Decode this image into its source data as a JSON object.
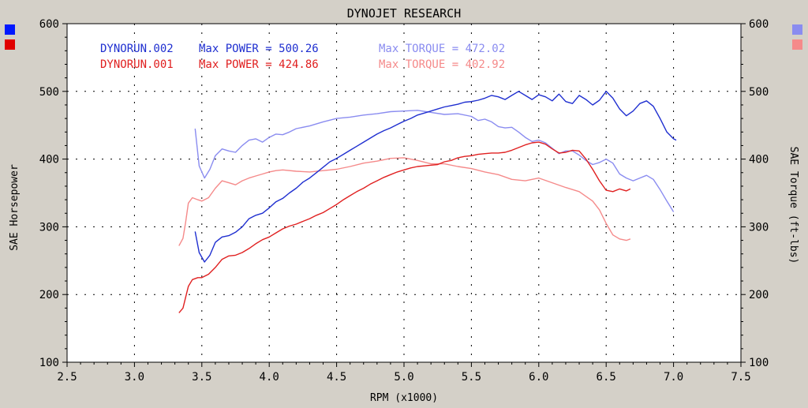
{
  "chart_data": {
    "type": "line",
    "title": "DYNOJET RESEARCH",
    "xlabel": "RPM (x1000)",
    "ylabel_left": "SAE Horsepower",
    "ylabel_right": "SAE Torque (ft-lbs)",
    "xlim": [
      2.5,
      7.5
    ],
    "ylim": [
      100,
      600
    ],
    "x_ticks": [
      "2.5",
      "3.0",
      "3.5",
      "4.0",
      "4.5",
      "5.0",
      "5.5",
      "6.0",
      "6.5",
      "7.0",
      "7.5"
    ],
    "y_ticks": [
      "100",
      "200",
      "300",
      "400",
      "500",
      "600"
    ],
    "grid": true,
    "legend_lines": [
      {
        "run": "DYNORUN.002",
        "power_label": "Max POWER = 500.26",
        "torque_label": "Max TORQUE = 472.02",
        "power_color": "#1f2fd0",
        "torque_color": "#8a8cf0"
      },
      {
        "run": "DYNORUN.001",
        "power_label": "Max POWER = 424.86",
        "torque_label": "Max TORQUE = 402.92",
        "power_color": "#e02020",
        "torque_color": "#f58a8a"
      }
    ],
    "series": [
      {
        "name": "DYNORUN.002 Max POWER",
        "color": "#1f2fd0",
        "points": [
          [
            3.45,
            293
          ],
          [
            3.48,
            262
          ],
          [
            3.52,
            248
          ],
          [
            3.56,
            258
          ],
          [
            3.6,
            277
          ],
          [
            3.65,
            285
          ],
          [
            3.7,
            287
          ],
          [
            3.75,
            292
          ],
          [
            3.8,
            300
          ],
          [
            3.85,
            312
          ],
          [
            3.9,
            317
          ],
          [
            3.95,
            320
          ],
          [
            4.0,
            328
          ],
          [
            4.05,
            337
          ],
          [
            4.1,
            342
          ],
          [
            4.15,
            350
          ],
          [
            4.2,
            357
          ],
          [
            4.25,
            366
          ],
          [
            4.3,
            372
          ],
          [
            4.35,
            380
          ],
          [
            4.4,
            388
          ],
          [
            4.45,
            396
          ],
          [
            4.5,
            401
          ],
          [
            4.55,
            407
          ],
          [
            4.6,
            413
          ],
          [
            4.65,
            419
          ],
          [
            4.7,
            425
          ],
          [
            4.75,
            431
          ],
          [
            4.8,
            437
          ],
          [
            4.85,
            442
          ],
          [
            4.9,
            446
          ],
          [
            4.95,
            451
          ],
          [
            5.0,
            456
          ],
          [
            5.05,
            460
          ],
          [
            5.1,
            465
          ],
          [
            5.15,
            468
          ],
          [
            5.2,
            471
          ],
          [
            5.25,
            474
          ],
          [
            5.3,
            477
          ],
          [
            5.35,
            479
          ],
          [
            5.4,
            481
          ],
          [
            5.45,
            484
          ],
          [
            5.5,
            485
          ],
          [
            5.55,
            487
          ],
          [
            5.6,
            490
          ],
          [
            5.65,
            494
          ],
          [
            5.7,
            492
          ],
          [
            5.75,
            488
          ],
          [
            5.8,
            494
          ],
          [
            5.85,
            500
          ],
          [
            5.9,
            494
          ],
          [
            5.95,
            488
          ],
          [
            6.0,
            495
          ],
          [
            6.05,
            492
          ],
          [
            6.1,
            486
          ],
          [
            6.15,
            496
          ],
          [
            6.2,
            485
          ],
          [
            6.25,
            482
          ],
          [
            6.3,
            494
          ],
          [
            6.35,
            488
          ],
          [
            6.4,
            480
          ],
          [
            6.45,
            487
          ],
          [
            6.5,
            500
          ],
          [
            6.55,
            490
          ],
          [
            6.6,
            474
          ],
          [
            6.65,
            464
          ],
          [
            6.7,
            471
          ],
          [
            6.75,
            482
          ],
          [
            6.8,
            486
          ],
          [
            6.85,
            478
          ],
          [
            6.9,
            460
          ],
          [
            6.95,
            440
          ],
          [
            7.0,
            430
          ],
          [
            7.02,
            428
          ]
        ]
      },
      {
        "name": "DYNORUN.002 Max TORQUE",
        "color": "#8a8cf0",
        "points": [
          [
            3.45,
            445
          ],
          [
            3.48,
            390
          ],
          [
            3.52,
            372
          ],
          [
            3.56,
            385
          ],
          [
            3.6,
            405
          ],
          [
            3.65,
            415
          ],
          [
            3.7,
            412
          ],
          [
            3.75,
            410
          ],
          [
            3.8,
            420
          ],
          [
            3.85,
            428
          ],
          [
            3.9,
            430
          ],
          [
            3.95,
            425
          ],
          [
            4.0,
            432
          ],
          [
            4.05,
            437
          ],
          [
            4.1,
            436
          ],
          [
            4.15,
            440
          ],
          [
            4.2,
            445
          ],
          [
            4.3,
            449
          ],
          [
            4.4,
            455
          ],
          [
            4.5,
            460
          ],
          [
            4.6,
            462
          ],
          [
            4.7,
            465
          ],
          [
            4.8,
            467
          ],
          [
            4.9,
            470
          ],
          [
            5.0,
            471
          ],
          [
            5.1,
            472
          ],
          [
            5.2,
            469
          ],
          [
            5.3,
            466
          ],
          [
            5.4,
            467
          ],
          [
            5.5,
            463
          ],
          [
            5.55,
            457
          ],
          [
            5.6,
            459
          ],
          [
            5.65,
            455
          ],
          [
            5.7,
            448
          ],
          [
            5.75,
            446
          ],
          [
            5.8,
            447
          ],
          [
            5.85,
            440
          ],
          [
            5.9,
            432
          ],
          [
            5.95,
            426
          ],
          [
            6.0,
            428
          ],
          [
            6.05,
            424
          ],
          [
            6.1,
            416
          ],
          [
            6.15,
            408
          ],
          [
            6.2,
            412
          ],
          [
            6.25,
            412
          ],
          [
            6.3,
            406
          ],
          [
            6.35,
            398
          ],
          [
            6.4,
            392
          ],
          [
            6.45,
            395
          ],
          [
            6.5,
            400
          ],
          [
            6.55,
            394
          ],
          [
            6.6,
            378
          ],
          [
            6.65,
            372
          ],
          [
            6.7,
            368
          ],
          [
            6.75,
            372
          ],
          [
            6.8,
            376
          ],
          [
            6.85,
            370
          ],
          [
            6.9,
            355
          ],
          [
            6.95,
            338
          ],
          [
            7.0,
            322
          ]
        ]
      },
      {
        "name": "DYNORUN.001 Max POWER",
        "color": "#e02020",
        "points": [
          [
            3.33,
            173
          ],
          [
            3.36,
            180
          ],
          [
            3.38,
            196
          ],
          [
            3.4,
            212
          ],
          [
            3.43,
            222
          ],
          [
            3.47,
            225
          ],
          [
            3.5,
            225
          ],
          [
            3.55,
            230
          ],
          [
            3.6,
            240
          ],
          [
            3.65,
            252
          ],
          [
            3.7,
            257
          ],
          [
            3.75,
            258
          ],
          [
            3.8,
            262
          ],
          [
            3.85,
            268
          ],
          [
            3.9,
            275
          ],
          [
            3.95,
            281
          ],
          [
            4.0,
            285
          ],
          [
            4.05,
            291
          ],
          [
            4.1,
            297
          ],
          [
            4.15,
            301
          ],
          [
            4.2,
            304
          ],
          [
            4.25,
            308
          ],
          [
            4.3,
            312
          ],
          [
            4.35,
            317
          ],
          [
            4.4,
            321
          ],
          [
            4.45,
            327
          ],
          [
            4.5,
            333
          ],
          [
            4.55,
            340
          ],
          [
            4.6,
            346
          ],
          [
            4.65,
            352
          ],
          [
            4.7,
            357
          ],
          [
            4.75,
            363
          ],
          [
            4.8,
            368
          ],
          [
            4.85,
            373
          ],
          [
            4.9,
            377
          ],
          [
            4.95,
            381
          ],
          [
            5.0,
            384
          ],
          [
            5.05,
            387
          ],
          [
            5.1,
            389
          ],
          [
            5.15,
            390
          ],
          [
            5.2,
            391
          ],
          [
            5.25,
            392
          ],
          [
            5.3,
            396
          ],
          [
            5.35,
            398
          ],
          [
            5.4,
            402
          ],
          [
            5.45,
            404
          ],
          [
            5.5,
            405
          ],
          [
            5.55,
            407
          ],
          [
            5.6,
            408
          ],
          [
            5.65,
            409
          ],
          [
            5.7,
            409
          ],
          [
            5.75,
            410
          ],
          [
            5.8,
            413
          ],
          [
            5.85,
            417
          ],
          [
            5.9,
            421
          ],
          [
            5.95,
            424
          ],
          [
            6.0,
            425
          ],
          [
            6.05,
            422
          ],
          [
            6.1,
            415
          ],
          [
            6.15,
            409
          ],
          [
            6.2,
            410
          ],
          [
            6.25,
            413
          ],
          [
            6.3,
            412
          ],
          [
            6.35,
            400
          ],
          [
            6.4,
            385
          ],
          [
            6.45,
            368
          ],
          [
            6.5,
            354
          ],
          [
            6.55,
            352
          ],
          [
            6.6,
            356
          ],
          [
            6.65,
            353
          ],
          [
            6.68,
            356
          ]
        ]
      },
      {
        "name": "DYNORUN.001 Max TORQUE",
        "color": "#f58a8a",
        "points": [
          [
            3.33,
            272
          ],
          [
            3.36,
            283
          ],
          [
            3.38,
            307
          ],
          [
            3.4,
            335
          ],
          [
            3.43,
            343
          ],
          [
            3.47,
            340
          ],
          [
            3.5,
            338
          ],
          [
            3.55,
            343
          ],
          [
            3.6,
            357
          ],
          [
            3.65,
            368
          ],
          [
            3.7,
            365
          ],
          [
            3.75,
            362
          ],
          [
            3.8,
            368
          ],
          [
            3.85,
            372
          ],
          [
            3.9,
            375
          ],
          [
            3.95,
            378
          ],
          [
            4.0,
            381
          ],
          [
            4.05,
            383
          ],
          [
            4.1,
            384
          ],
          [
            4.2,
            382
          ],
          [
            4.3,
            381
          ],
          [
            4.4,
            383
          ],
          [
            4.5,
            385
          ],
          [
            4.6,
            389
          ],
          [
            4.7,
            394
          ],
          [
            4.8,
            397
          ],
          [
            4.9,
            401
          ],
          [
            5.0,
            402
          ],
          [
            5.1,
            398
          ],
          [
            5.2,
            393
          ],
          [
            5.3,
            393
          ],
          [
            5.4,
            389
          ],
          [
            5.5,
            386
          ],
          [
            5.6,
            381
          ],
          [
            5.7,
            377
          ],
          [
            5.8,
            370
          ],
          [
            5.9,
            368
          ],
          [
            6.0,
            372
          ],
          [
            6.1,
            365
          ],
          [
            6.2,
            358
          ],
          [
            6.3,
            352
          ],
          [
            6.4,
            338
          ],
          [
            6.45,
            325
          ],
          [
            6.5,
            305
          ],
          [
            6.55,
            288
          ],
          [
            6.6,
            282
          ],
          [
            6.65,
            280
          ],
          [
            6.68,
            282
          ]
        ]
      }
    ]
  },
  "side_markers": {
    "left": [
      "#0018ff",
      "#e00000"
    ],
    "right": [
      "#8a8cf0",
      "#f58a8a"
    ]
  }
}
